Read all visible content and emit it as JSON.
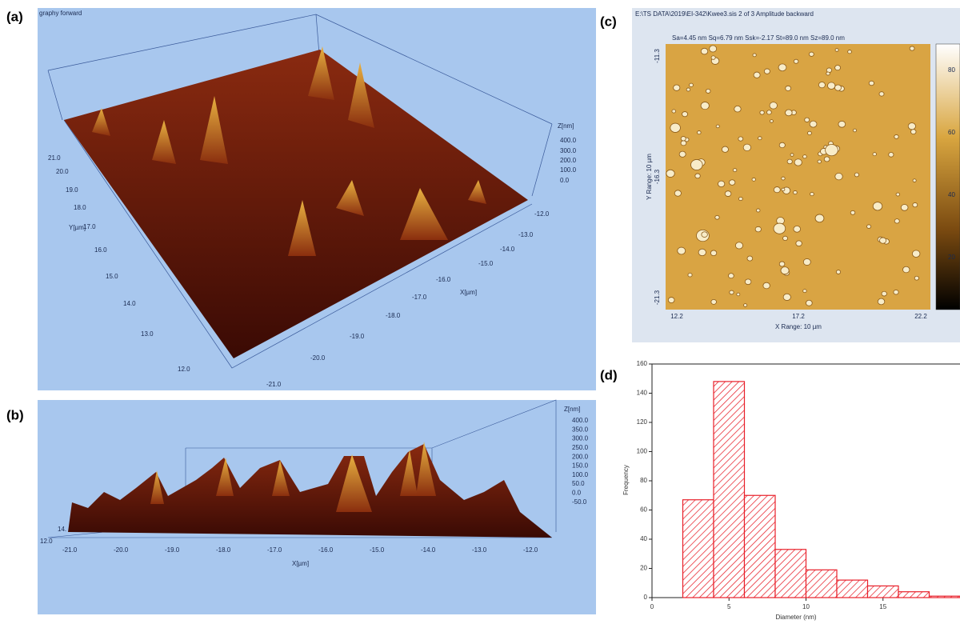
{
  "panel_a": {
    "label": "(a)",
    "title": "graphy forward",
    "z_label": "Z[nm]",
    "z_ticks": [
      "400.0",
      "300.0",
      "200.0",
      "100.0",
      "0.0"
    ],
    "y_label": "Y[µm]",
    "y_ticks": [
      "21.0",
      "20.0",
      "19.0",
      "18.0",
      "17.0",
      "16.0",
      "15.0",
      "14.0",
      "13.0",
      "12.0"
    ],
    "x_label": "X[µm]",
    "x_ticks": [
      "-12.0",
      "-13.0",
      "-14.0",
      "-15.0",
      "-16.0",
      "-17.0",
      "-18.0",
      "-19.0",
      "-20.0",
      "-21.0"
    ]
  },
  "panel_b": {
    "label": "(b)",
    "z_label": "Z[nm]",
    "z_ticks": [
      "400.0",
      "350.0",
      "300.0",
      "250.0",
      "200.0",
      "150.0",
      "100.0",
      "50.0",
      "0.0",
      "-50.0"
    ],
    "x_label": "X[µm]",
    "x_ticks": [
      "-21.0",
      "-20.0",
      "-19.0",
      "-18.0",
      "-17.0",
      "-16.0",
      "-15.0",
      "-14.0",
      "-13.0",
      "-12.0"
    ],
    "y_ticks": [
      "12.0",
      "14."
    ]
  },
  "panel_c": {
    "label": "(c)",
    "title": "E:\\TS DATA\\2019\\EI-342\\Kwee3.sis 2 of 3 Amplitude backward",
    "stats": "Sa=4.45 nm  Sq=6.79 nm  Ssk=-2.17    St=89.0 nm  Sz=89.0 nm",
    "y_label": "Y Range: 10 µm",
    "y_ticks": [
      "-11.3",
      "-16.3",
      "-21.3"
    ],
    "x_label": "X Range: 10 µm",
    "x_ticks": [
      "12.2",
      "17.2",
      "22.2"
    ],
    "colorbar_ticks": [
      "80",
      "60",
      "40",
      "20"
    ]
  },
  "chart_data": {
    "type": "histogram",
    "panel_label": "(d)",
    "x_label": "Diameter (nm)",
    "y_label": "Frequency",
    "color": "#e8202a",
    "bins": [
      2,
      4,
      6,
      8,
      10,
      12,
      14,
      16,
      18,
      20
    ],
    "values": [
      67,
      148,
      70,
      33,
      19,
      12,
      8,
      4,
      1
    ],
    "xlim": [
      0,
      20
    ],
    "xticks": [
      0,
      5,
      10,
      15
    ],
    "ylim": [
      0,
      160
    ],
    "yticks": [
      0,
      20,
      40,
      60,
      80,
      100,
      120,
      140,
      160
    ]
  }
}
